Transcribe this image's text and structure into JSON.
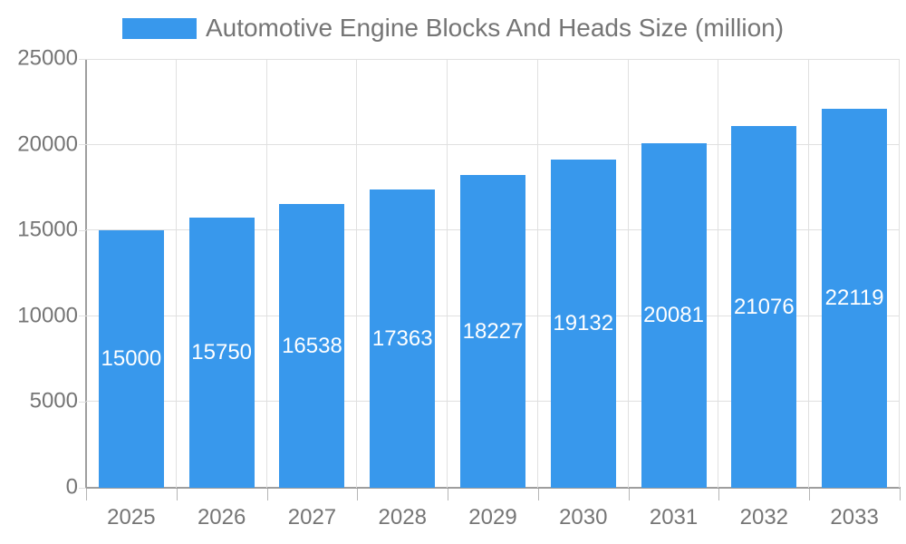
{
  "chart_data": {
    "type": "bar",
    "title": "Automotive Engine Blocks And Heads Size (million)",
    "legend": [
      "Automotive Engine Blocks And Heads Size (million)"
    ],
    "legend_position": "top",
    "categories": [
      "2025",
      "2026",
      "2027",
      "2028",
      "2029",
      "2030",
      "2031",
      "2032",
      "2033"
    ],
    "values": [
      15000,
      15750,
      16538,
      17363,
      18227,
      19132,
      20081,
      21076,
      22119
    ],
    "xlabel": "",
    "ylabel": "",
    "ylim": [
      0,
      25000
    ],
    "y_ticks": [
      0,
      5000,
      10000,
      15000,
      20000,
      25000
    ],
    "grid": "both",
    "bar_labels_inside": true,
    "style": {
      "bar_color": "#3898ec",
      "bar_label_color": "#ffffff",
      "grid_color": "#e0e0e0",
      "axis_line_color": "#9e9e9e",
      "tick_color": "#b5b5b5",
      "text_color": "#757575",
      "background_color": "#ffffff"
    }
  }
}
